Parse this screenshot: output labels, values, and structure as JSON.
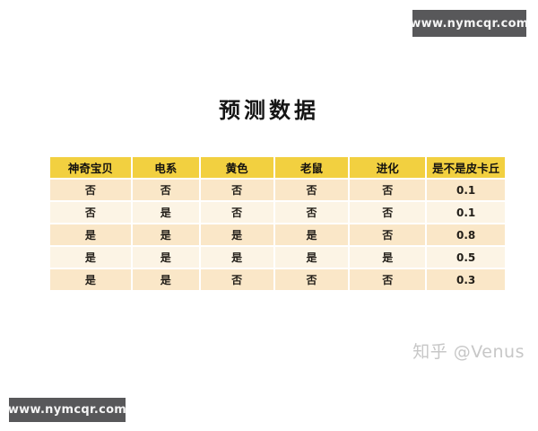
{
  "banners": {
    "top_right": "www.nymcqr.com",
    "bottom_left": "www.nymcqr.com"
  },
  "watermark": "知乎 @Venus",
  "colors": {
    "banner_bg": "#58585a",
    "banner_text": "#f5f5f5",
    "header_bg": "#f2d040",
    "row_odd_bg": "#fae7c8",
    "row_even_bg": "#fcf4e5",
    "watermark_text": "#c7c7c7",
    "title_text": "#151515"
  },
  "chart_data": {
    "type": "table",
    "title": "预测数据",
    "columns": [
      "神奇宝贝",
      "电系",
      "黄色",
      "老鼠",
      "进化",
      "是不是皮卡丘"
    ],
    "rows": [
      [
        "否",
        "否",
        "否",
        "否",
        "否",
        "0.1"
      ],
      [
        "否",
        "是",
        "否",
        "否",
        "否",
        "0.1"
      ],
      [
        "是",
        "是",
        "是",
        "是",
        "否",
        "0.8"
      ],
      [
        "是",
        "是",
        "是",
        "是",
        "是",
        "0.5"
      ],
      [
        "是",
        "是",
        "否",
        "否",
        "否",
        "0.3"
      ]
    ]
  }
}
